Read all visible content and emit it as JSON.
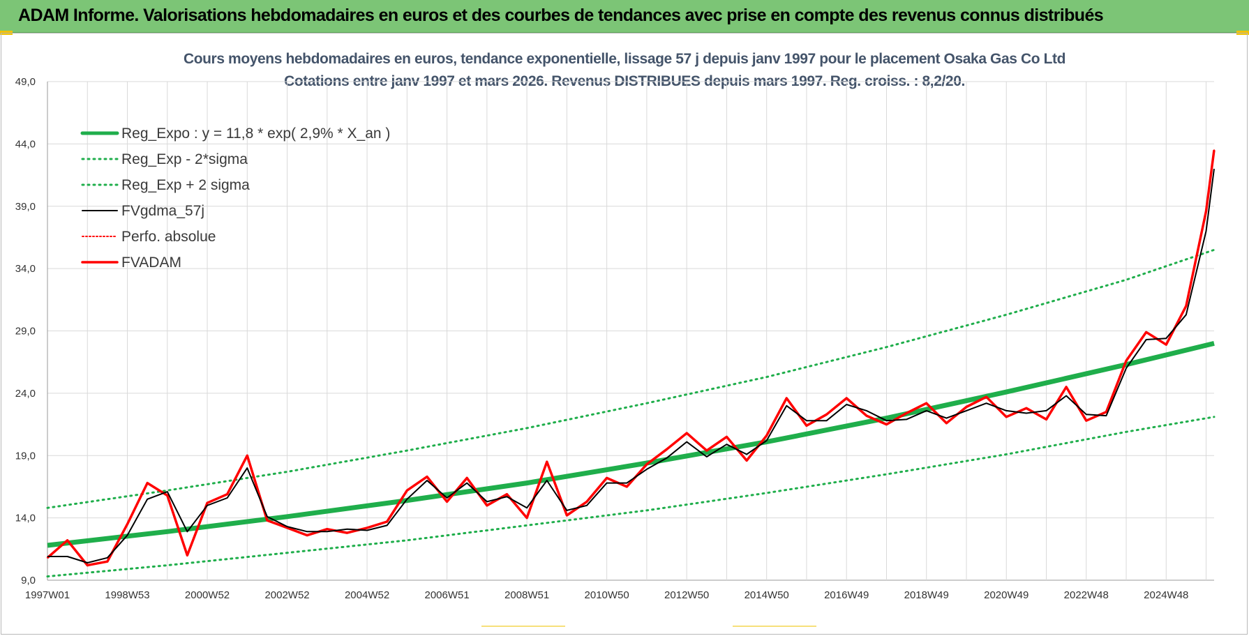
{
  "banner": {
    "title": "ADAM Informe. Valorisations hebdomadaires en euros et des courbes de tendances avec prise en compte des revenus connus distribués"
  },
  "colors": {
    "banner": "#7cc576",
    "trend": "#1fae4b",
    "adam": "#ff0000",
    "smooth": "#000000"
  },
  "chart_data": {
    "type": "line",
    "title": "Cours moyens hebdomadaires en euros, tendance exponentielle, lissage 57 j depuis janv 1997 pour le placement Osaka Gas Co Ltd",
    "subtitle": "Cotations entre janv 1997 et mars 2026. Revenus DISTRIBUES depuis mars 1997. Reg. croiss. : 8,2/20.",
    "xlabel": "",
    "ylabel": "",
    "x_range": [
      1997.0,
      2026.2
    ],
    "ylim": [
      9.0,
      49.0
    ],
    "y_ticks": [
      "9,0",
      "14,0",
      "19,0",
      "24,0",
      "29,0",
      "34,0",
      "39,0",
      "44,0",
      "49,0"
    ],
    "x_ticks": [
      {
        "label": "1997W01",
        "x": 1997.0
      },
      {
        "label": "1998W53",
        "x": 1999.0
      },
      {
        "label": "2000W52",
        "x": 2001.0
      },
      {
        "label": "2002W52",
        "x": 2003.0
      },
      {
        "label": "2004W52",
        "x": 2005.0
      },
      {
        "label": "2006W51",
        "x": 2007.0
      },
      {
        "label": "2008W51",
        "x": 2009.0
      },
      {
        "label": "2010W50",
        "x": 2011.0
      },
      {
        "label": "2012W50",
        "x": 2013.0
      },
      {
        "label": "2014W50",
        "x": 2015.0
      },
      {
        "label": "2016W49",
        "x": 2017.0
      },
      {
        "label": "2018W49",
        "x": 2019.0
      },
      {
        "label": "2020W49",
        "x": 2021.0
      },
      {
        "label": "2022W48",
        "x": 2023.0
      },
      {
        "label": "2024W48",
        "x": 2025.0
      }
    ],
    "grid": true,
    "legend_position": "top-left",
    "series": [
      {
        "name": "Reg_Expo : y = 11,8 * exp( 2,9% *  X_an )",
        "style": "solid-thick",
        "color": "#1fae4b",
        "x": [
          1997.0,
          2000.0,
          2003.0,
          2006.0,
          2009.0,
          2012.0,
          2015.0,
          2018.0,
          2021.0,
          2024.0,
          2026.2
        ],
        "y": [
          11.8,
          12.9,
          14.1,
          15.4,
          16.8,
          18.4,
          20.1,
          22.0,
          24.1,
          26.3,
          28.0
        ]
      },
      {
        "name": "Reg_Exp - 2*sigma",
        "style": "dotted",
        "color": "#1fae4b",
        "x": [
          1997.0,
          2000.0,
          2003.0,
          2006.0,
          2009.0,
          2012.0,
          2015.0,
          2018.0,
          2021.0,
          2024.0,
          2026.2
        ],
        "y": [
          9.3,
          10.2,
          11.2,
          12.2,
          13.4,
          14.6,
          16.0,
          17.5,
          19.1,
          20.9,
          22.1
        ]
      },
      {
        "name": "Reg_Exp + 2 sigma",
        "style": "dotted",
        "color": "#1fae4b",
        "x": [
          1997.0,
          2000.0,
          2003.0,
          2006.0,
          2009.0,
          2012.0,
          2015.0,
          2018.0,
          2021.0,
          2024.0,
          2026.2
        ],
        "y": [
          14.8,
          16.2,
          17.7,
          19.4,
          21.2,
          23.2,
          25.3,
          27.7,
          30.3,
          33.1,
          35.5
        ]
      },
      {
        "name": "FVgdma_57j",
        "style": "solid",
        "color": "#000000",
        "x": [
          1997.0,
          1997.5,
          1998.0,
          1998.5,
          1999.0,
          1999.5,
          2000.0,
          2000.5,
          2001.0,
          2001.5,
          2002.0,
          2002.5,
          2003.0,
          2003.5,
          2004.0,
          2004.5,
          2005.0,
          2005.5,
          2006.0,
          2006.5,
          2007.0,
          2007.5,
          2008.0,
          2008.5,
          2009.0,
          2009.5,
          2010.0,
          2010.5,
          2011.0,
          2011.5,
          2012.0,
          2012.5,
          2013.0,
          2013.5,
          2014.0,
          2014.5,
          2015.0,
          2015.5,
          2016.0,
          2016.5,
          2017.0,
          2017.5,
          2018.0,
          2018.5,
          2019.0,
          2019.5,
          2020.0,
          2020.5,
          2021.0,
          2021.5,
          2022.0,
          2022.5,
          2023.0,
          2023.5,
          2024.0,
          2024.5,
          2025.0,
          2025.5,
          2026.0,
          2026.2
        ],
        "y": [
          10.9,
          10.9,
          10.4,
          10.8,
          12.6,
          15.5,
          16.1,
          12.9,
          15.0,
          15.6,
          18.0,
          14.1,
          13.3,
          12.9,
          12.9,
          13.1,
          13.0,
          13.4,
          15.5,
          17.0,
          15.6,
          16.8,
          15.3,
          15.7,
          14.8,
          17.0,
          14.6,
          15.0,
          16.8,
          16.8,
          17.9,
          18.8,
          20.1,
          18.9,
          19.9,
          19.1,
          20.2,
          23.0,
          21.8,
          21.8,
          23.1,
          22.6,
          21.8,
          21.9,
          22.6,
          22.0,
          22.6,
          23.2,
          22.6,
          22.4,
          22.6,
          23.8,
          22.3,
          22.2,
          26.0,
          28.3,
          28.4,
          30.3,
          37.0,
          42.0
        ]
      },
      {
        "name": "Perfo. absolue",
        "style": "dotted",
        "color": "#ff0000",
        "x": [
          1997.0,
          1997.5,
          1998.0,
          1998.5,
          1999.0,
          1999.5,
          2000.0,
          2000.5,
          2001.0,
          2001.5,
          2002.0,
          2002.5,
          2003.0,
          2003.5,
          2004.0,
          2004.5,
          2005.0,
          2005.5,
          2006.0,
          2006.5,
          2007.0,
          2007.5,
          2008.0,
          2008.5,
          2009.0,
          2009.5,
          2010.0,
          2010.5,
          2011.0,
          2011.5,
          2012.0,
          2012.5,
          2013.0,
          2013.5,
          2014.0,
          2014.5,
          2015.0,
          2015.5,
          2016.0,
          2016.5,
          2017.0,
          2017.5,
          2018.0,
          2018.5,
          2019.0,
          2019.5,
          2020.0,
          2020.5,
          2021.0,
          2021.5,
          2022.0,
          2022.5,
          2023.0,
          2023.5,
          2024.0,
          2024.5,
          2025.0,
          2025.5,
          2026.0,
          2026.2
        ],
        "y": [
          10.8,
          12.2,
          10.2,
          10.5,
          13.5,
          16.8,
          15.8,
          11.0,
          15.2,
          15.9,
          19.0,
          13.8,
          13.2,
          12.6,
          13.1,
          12.8,
          13.2,
          13.7,
          16.2,
          17.3,
          15.3,
          17.2,
          15.0,
          15.9,
          14.0,
          18.5,
          14.2,
          15.3,
          17.2,
          16.5,
          18.3,
          19.5,
          20.8,
          19.4,
          20.5,
          18.6,
          20.6,
          23.6,
          21.4,
          22.3,
          23.6,
          22.2,
          21.5,
          22.4,
          23.2,
          21.6,
          22.9,
          23.7,
          22.1,
          22.8,
          21.9,
          24.5,
          21.8,
          22.5,
          26.6,
          28.9,
          27.9,
          31.0,
          38.6,
          43.5
        ]
      },
      {
        "name": "FVADAM",
        "style": "solid-thick",
        "color": "#ff0000",
        "x": [
          1997.0,
          1997.5,
          1998.0,
          1998.5,
          1999.0,
          1999.5,
          2000.0,
          2000.5,
          2001.0,
          2001.5,
          2002.0,
          2002.5,
          2003.0,
          2003.5,
          2004.0,
          2004.5,
          2005.0,
          2005.5,
          2006.0,
          2006.5,
          2007.0,
          2007.5,
          2008.0,
          2008.5,
          2009.0,
          2009.5,
          2010.0,
          2010.5,
          2011.0,
          2011.5,
          2012.0,
          2012.5,
          2013.0,
          2013.5,
          2014.0,
          2014.5,
          2015.0,
          2015.5,
          2016.0,
          2016.5,
          2017.0,
          2017.5,
          2018.0,
          2018.5,
          2019.0,
          2019.5,
          2020.0,
          2020.5,
          2021.0,
          2021.5,
          2022.0,
          2022.5,
          2023.0,
          2023.5,
          2024.0,
          2024.5,
          2025.0,
          2025.5,
          2026.0,
          2026.2
        ],
        "y": [
          10.8,
          12.2,
          10.2,
          10.5,
          13.5,
          16.8,
          15.8,
          11.0,
          15.2,
          15.9,
          19.0,
          13.8,
          13.2,
          12.6,
          13.1,
          12.8,
          13.2,
          13.7,
          16.2,
          17.3,
          15.3,
          17.2,
          15.0,
          15.9,
          14.0,
          18.5,
          14.2,
          15.3,
          17.2,
          16.5,
          18.3,
          19.5,
          20.8,
          19.4,
          20.5,
          18.6,
          20.6,
          23.6,
          21.4,
          22.3,
          23.6,
          22.2,
          21.5,
          22.4,
          23.2,
          21.6,
          22.9,
          23.7,
          22.1,
          22.8,
          21.9,
          24.5,
          21.8,
          22.5,
          26.6,
          28.9,
          27.9,
          31.0,
          38.6,
          43.5
        ]
      }
    ]
  }
}
